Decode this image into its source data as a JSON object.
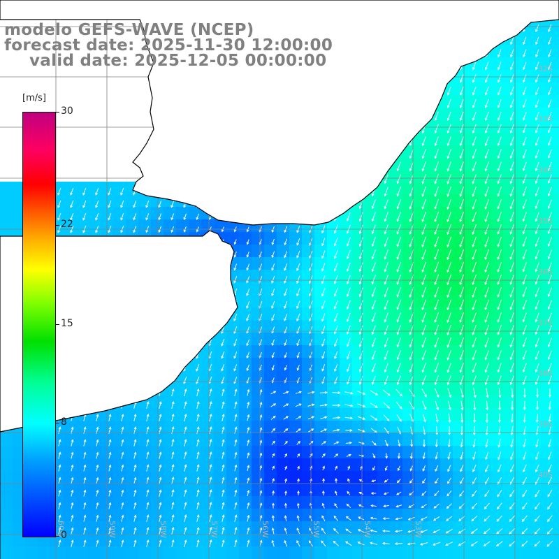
{
  "title": {
    "line1": "modelo GEFS-WAVE (NCEP)",
    "line2": "forecast date: 2025-11-30 12:00:00",
    "line3": "valid date: 2025-12-05 00:00:00"
  },
  "colorbar": {
    "units": "[m/s]",
    "min": 0,
    "max": 30,
    "ticks": [
      "0",
      "8",
      "15",
      "22",
      "30"
    ],
    "tick_values": [
      0,
      8,
      15,
      22,
      30
    ],
    "colors": [
      "#0000ff",
      "#00a0ff",
      "#00ffff",
      "#00ff99",
      "#00e000",
      "#80ff00",
      "#ffff00",
      "#ff6000",
      "#ff0000",
      "#c00080"
    ]
  },
  "map": {
    "land_color": "#ffffff",
    "grid_color": "#808080",
    "coastline_color": "#000000",
    "arrow_color": "#ffffff",
    "lat_labels": [
      "32S",
      "33S",
      "34S",
      "35S",
      "36S",
      "37S",
      "38S",
      "39S",
      "40S"
    ],
    "lon_labels": [
      "60W",
      "59W",
      "58W",
      "57W",
      "56W",
      "55W",
      "54W",
      "53W"
    ]
  }
}
